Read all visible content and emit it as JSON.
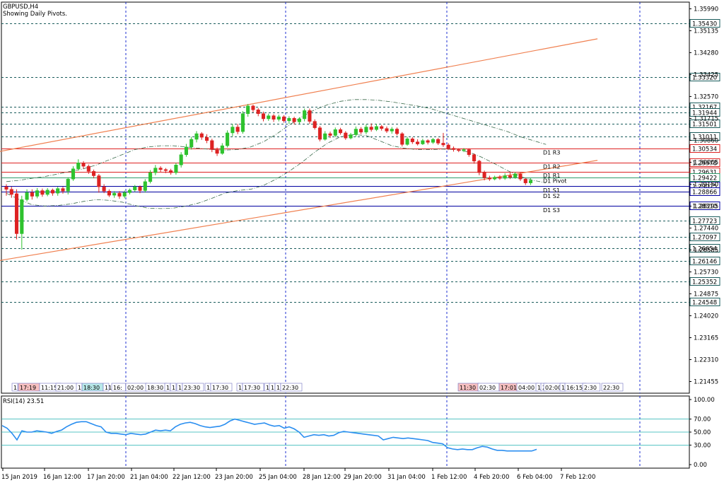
{
  "title": "GBPUSD,H4",
  "subtitle": "Showing Daily Pivots.",
  "colors": {
    "bull": "#2ec22e",
    "bear": "#dd2222",
    "channel": "#f08050",
    "pivot_resistance": "#dd2222",
    "pivot_support": "#0000a0",
    "pivot_main": "#2e9b6b",
    "level_line": "#1a5c5c",
    "grid": "#1c2fd0",
    "envelope": "#3a6a4a",
    "rsi_line": "#2a8ef0",
    "rsi_level": "#20b0b0"
  },
  "chart_data": [
    {
      "type": "candlestick",
      "symbol": "GBPUSD",
      "timeframe": "H4",
      "ylim": [
        1.21,
        1.3625
      ],
      "y_ticks": [
        "1.35990",
        "1.35135",
        "1.34280",
        "1.33425",
        "1.32570",
        "1.31715",
        "1.30860",
        "1.30005",
        "1.29150",
        "1.28295",
        "1.27440",
        "1.26585",
        "1.25730",
        "1.24875",
        "1.24020",
        "1.23165",
        "1.22310",
        "1.21455"
      ],
      "x_labels": [
        "15 Jan 2019",
        "16 Jan 12:00",
        "17 Jan 20:00",
        "21 Jan 04:00",
        "22 Jan 12:00",
        "23 Jan 20:00",
        "25 Jan 04:00",
        "28 Jan 12:00",
        "29 Jan 20:00",
        "31 Jan 04:00",
        "1 Feb 12:00",
        "4 Feb 20:00",
        "6 Feb 04:00",
        "7 Feb 12:00"
      ],
      "price_levels": [
        {
          "value": "1.35430",
          "kind": "level"
        },
        {
          "value": "1.33320",
          "kind": "level"
        },
        {
          "value": "1.32167",
          "kind": "level"
        },
        {
          "value": "1.31944",
          "kind": "level"
        },
        {
          "value": "1.31501",
          "kind": "level"
        },
        {
          "value": "1.31011",
          "kind": "level"
        },
        {
          "value": "1.30534",
          "kind": "resistance"
        },
        {
          "value": "1.29978",
          "kind": "resistance"
        },
        {
          "value": "1.29631",
          "kind": "resistance"
        },
        {
          "value": "1.29422",
          "kind": "pivot"
        },
        {
          "value": "1.29075",
          "kind": "support"
        },
        {
          "value": "1.28866",
          "kind": "support"
        },
        {
          "value": "1.28310",
          "kind": "support"
        },
        {
          "value": "1.27723",
          "kind": "level"
        },
        {
          "value": "1.27097",
          "kind": "level"
        },
        {
          "value": "1.26654",
          "kind": "level"
        },
        {
          "value": "1.26146",
          "kind": "level"
        },
        {
          "value": "1.25352",
          "kind": "level"
        },
        {
          "value": "1.24548",
          "kind": "level"
        }
      ],
      "pivots": [
        {
          "label": "D1  R3",
          "value": 1.30534,
          "kind": "resistance"
        },
        {
          "label": "D1  R2",
          "value": 1.29978,
          "kind": "resistance"
        },
        {
          "label": "D1  R1",
          "value": 1.29631,
          "kind": "resistance"
        },
        {
          "label": "D1  Pivot",
          "value": 1.29422,
          "kind": "pivot"
        },
        {
          "label": "D1  S1",
          "value": 1.29075,
          "kind": "support"
        },
        {
          "label": "D1  S2",
          "value": 1.28866,
          "kind": "support"
        },
        {
          "label": "D1  S3",
          "value": 1.2831,
          "kind": "support"
        }
      ],
      "candles": [
        [
          1.2905,
          1.2895,
          1.287,
          1.2915
        ],
        [
          1.2895,
          1.2875,
          1.2862,
          1.2905
        ],
        [
          1.2878,
          1.2722,
          1.27,
          1.2895
        ],
        [
          1.2722,
          1.2855,
          1.266,
          1.287
        ],
        [
          1.2855,
          1.2882,
          1.2848,
          1.2895
        ],
        [
          1.2882,
          1.2868,
          1.2855,
          1.2895
        ],
        [
          1.2868,
          1.289,
          1.286,
          1.29
        ],
        [
          1.289,
          1.2875,
          1.2866,
          1.2898
        ],
        [
          1.2875,
          1.2892,
          1.2868,
          1.29
        ],
        [
          1.2892,
          1.288,
          1.287,
          1.2898
        ],
        [
          1.288,
          1.2898,
          1.287,
          1.2905
        ],
        [
          1.2898,
          1.2888,
          1.2878,
          1.2905
        ],
        [
          1.2888,
          1.2935,
          1.2875,
          1.2942
        ],
        [
          1.2935,
          1.2975,
          1.2928,
          1.2985
        ],
        [
          1.2975,
          1.2998,
          1.2968,
          1.3012
        ],
        [
          1.2998,
          1.2985,
          1.2975,
          1.3005
        ],
        [
          1.2985,
          1.2965,
          1.2955,
          1.2992
        ],
        [
          1.2965,
          1.2948,
          1.2938,
          1.2972
        ],
        [
          1.2948,
          1.2905,
          1.2882,
          1.2955
        ],
        [
          1.2905,
          1.2888,
          1.288,
          1.2915
        ],
        [
          1.2888,
          1.2872,
          1.2865,
          1.2895
        ],
        [
          1.2872,
          1.288,
          1.2862,
          1.2888
        ],
        [
          1.288,
          1.2868,
          1.2858,
          1.2888
        ],
        [
          1.2868,
          1.2882,
          1.286,
          1.289
        ],
        [
          1.2882,
          1.2892,
          1.2875,
          1.2898
        ],
        [
          1.2892,
          1.2905,
          1.2885,
          1.2912
        ],
        [
          1.2905,
          1.289,
          1.288,
          1.291
        ],
        [
          1.289,
          1.2925,
          1.2882,
          1.2935
        ],
        [
          1.2925,
          1.296,
          1.2918,
          1.297
        ],
        [
          1.296,
          1.2978,
          1.295,
          1.299
        ],
        [
          1.2978,
          1.2972,
          1.2962,
          1.2985
        ],
        [
          1.2972,
          1.2968,
          1.2958,
          1.2978
        ],
        [
          1.2968,
          1.296,
          1.2952,
          1.2975
        ],
        [
          1.296,
          1.299,
          1.2952,
          1.2998
        ],
        [
          1.299,
          1.303,
          1.298,
          1.304
        ],
        [
          1.303,
          1.306,
          1.3022,
          1.3072
        ],
        [
          1.306,
          1.309,
          1.305,
          1.31
        ],
        [
          1.309,
          1.3112,
          1.3078,
          1.3122
        ],
        [
          1.3112,
          1.3098,
          1.3088,
          1.3118
        ],
        [
          1.3098,
          1.3085,
          1.3075,
          1.311
        ],
        [
          1.3085,
          1.305,
          1.304,
          1.3092
        ],
        [
          1.305,
          1.3035,
          1.3025,
          1.3058
        ],
        [
          1.3035,
          1.3065,
          1.303,
          1.3075
        ],
        [
          1.3065,
          1.3115,
          1.3058,
          1.3125
        ],
        [
          1.3115,
          1.3138,
          1.3102,
          1.315
        ],
        [
          1.3138,
          1.312,
          1.311,
          1.315
        ],
        [
          1.312,
          1.319,
          1.3112,
          1.32
        ],
        [
          1.319,
          1.322,
          1.3178,
          1.3228
        ],
        [
          1.322,
          1.3205,
          1.3195,
          1.3225
        ],
        [
          1.3205,
          1.319,
          1.318,
          1.3212
        ],
        [
          1.319,
          1.317,
          1.316,
          1.3198
        ],
        [
          1.317,
          1.3182,
          1.3162,
          1.319
        ],
        [
          1.3182,
          1.3168,
          1.3158,
          1.3188
        ],
        [
          1.3168,
          1.3178,
          1.316,
          1.3186
        ],
        [
          1.3178,
          1.3162,
          1.3155,
          1.3184
        ],
        [
          1.3162,
          1.3172,
          1.315,
          1.318
        ],
        [
          1.3172,
          1.3158,
          1.3148,
          1.3178
        ],
        [
          1.3158,
          1.317,
          1.315,
          1.3176
        ],
        [
          1.317,
          1.3202,
          1.316,
          1.321
        ],
        [
          1.3202,
          1.316,
          1.315,
          1.321
        ],
        [
          1.316,
          1.3135,
          1.3128,
          1.3168
        ],
        [
          1.3135,
          1.309,
          1.3082,
          1.3142
        ],
        [
          1.309,
          1.3112,
          1.3085,
          1.3122
        ],
        [
          1.3112,
          1.3105,
          1.3095,
          1.312
        ],
        [
          1.3105,
          1.3128,
          1.3098,
          1.3136
        ],
        [
          1.3128,
          1.3115,
          1.3108,
          1.3135
        ],
        [
          1.3115,
          1.3095,
          1.3088,
          1.3122
        ],
        [
          1.3095,
          1.3108,
          1.309,
          1.3115
        ],
        [
          1.3108,
          1.313,
          1.31,
          1.314
        ],
        [
          1.313,
          1.3118,
          1.311,
          1.3138
        ],
        [
          1.3118,
          1.3138,
          1.311,
          1.3148
        ],
        [
          1.3138,
          1.3128,
          1.312,
          1.3152
        ],
        [
          1.3128,
          1.314,
          1.3122,
          1.315
        ],
        [
          1.314,
          1.3132,
          1.3124,
          1.3146
        ],
        [
          1.3132,
          1.3122,
          1.3115,
          1.314
        ],
        [
          1.3122,
          1.313,
          1.3112,
          1.3138
        ],
        [
          1.313,
          1.3112,
          1.3105,
          1.3136
        ],
        [
          1.3112,
          1.307,
          1.3062,
          1.3118
        ],
        [
          1.307,
          1.3092,
          1.3065,
          1.31
        ],
        [
          1.3092,
          1.308,
          1.3072,
          1.3098
        ],
        [
          1.308,
          1.3072,
          1.3066,
          1.309
        ],
        [
          1.3072,
          1.3085,
          1.3068,
          1.3092
        ],
        [
          1.3085,
          1.3078,
          1.307,
          1.309
        ],
        [
          1.3078,
          1.309,
          1.3072,
          1.3095
        ],
        [
          1.309,
          1.3075,
          1.3068,
          1.3095
        ],
        [
          1.3075,
          1.3068,
          1.306,
          1.3115
        ],
        [
          1.3068,
          1.3055,
          1.3048,
          1.3075
        ],
        [
          1.3055,
          1.305,
          1.3042,
          1.3062
        ],
        [
          1.305,
          1.3046,
          1.304,
          1.3055
        ],
        [
          1.3046,
          1.305,
          1.304,
          1.3056
        ],
        [
          1.305,
          1.303,
          1.3022,
          1.3055
        ],
        [
          1.303,
          1.3005,
          1.2995,
          1.3035
        ],
        [
          1.3005,
          1.296,
          1.295,
          1.301
        ],
        [
          1.296,
          1.294,
          1.293,
          1.2968
        ],
        [
          1.294,
          1.2935,
          1.2928,
          1.2948
        ],
        [
          1.2935,
          1.2942,
          1.293,
          1.2948
        ],
        [
          1.2942,
          1.2938,
          1.2932,
          1.295
        ],
        [
          1.2938,
          1.2948,
          1.2932,
          1.2958
        ],
        [
          1.2948,
          1.2942,
          1.2935,
          1.2962
        ],
        [
          1.2942,
          1.2955,
          1.2936,
          1.2962
        ],
        [
          1.2955,
          1.2935,
          1.2928,
          1.296
        ],
        [
          1.2935,
          1.292,
          1.2912,
          1.294
        ],
        [
          1.292,
          1.293,
          1.2912,
          1.2938
        ]
      ],
      "channel_lines": [
        {
          "from_index": -2,
          "from_value": 1.304,
          "to_index": 115,
          "to_value": 1.3482
        },
        {
          "from_index": -2,
          "from_value": 1.2615,
          "to_index": 115,
          "to_value": 1.3008
        }
      ],
      "envelope_upper": [
        1.2925,
        1.293,
        1.2938,
        1.2945,
        1.2955,
        1.2965,
        1.2975,
        1.299,
        1.301,
        1.303,
        1.305,
        1.306,
        1.3065,
        1.3065,
        1.306,
        1.3055,
        1.305,
        1.3048,
        1.305,
        1.306,
        1.308,
        1.311,
        1.3145,
        1.3178,
        1.3205,
        1.3225,
        1.3238,
        1.3245,
        1.3245,
        1.3242,
        1.3236,
        1.3228,
        1.322,
        1.321,
        1.3195,
        1.318,
        1.3165,
        1.315,
        1.3135,
        1.312,
        1.31,
        1.3085,
        1.307
      ],
      "envelope_lower": [
        1.288,
        1.2855,
        1.2835,
        1.283,
        1.2832,
        1.2838,
        1.2848,
        1.2855,
        1.2852,
        1.2845,
        1.2832,
        1.2822,
        1.282,
        1.2822,
        1.283,
        1.2842,
        1.286,
        1.288,
        1.289,
        1.2895,
        1.291,
        1.2935,
        1.2965,
        1.3,
        1.304,
        1.3075,
        1.31,
        1.3108,
        1.3105,
        1.3085,
        1.3065,
        1.3055,
        1.305,
        1.305,
        1.3052,
        1.305,
        1.304,
        1.302,
        1.2995,
        1.2968,
        1.2945,
        1.293,
        1.292
      ]
    },
    {
      "type": "line",
      "name": "RSI(14) 23.51",
      "ylim": [
        0,
        100
      ],
      "y_ticks": [
        "100.00",
        "70.00",
        "50.00",
        "30.00",
        "0.00"
      ],
      "levels": [
        70,
        50,
        30
      ],
      "values": [
        60,
        56,
        48,
        38,
        52,
        50,
        50,
        52,
        51,
        50,
        48,
        51,
        53,
        58,
        62,
        65,
        66,
        66,
        63,
        60,
        58,
        50,
        48,
        48,
        47,
        46,
        48,
        47,
        46,
        47,
        50,
        53,
        52,
        53,
        52,
        58,
        62,
        64,
        65,
        63,
        60,
        58,
        57,
        58,
        59,
        62,
        67,
        70,
        68,
        66,
        64,
        62,
        63,
        64,
        61,
        59,
        60,
        56,
        58,
        55,
        50,
        42,
        44,
        46,
        45,
        46,
        44,
        45,
        49,
        51,
        50,
        49,
        48,
        47,
        46,
        45,
        44,
        38,
        40,
        42,
        41,
        40,
        41,
        40,
        39,
        38,
        37,
        34,
        33,
        32,
        26,
        24,
        23,
        24,
        23,
        23,
        26,
        28,
        27,
        24,
        22,
        22,
        21,
        21,
        21,
        21,
        21,
        21,
        23.51
      ]
    }
  ],
  "session_markers": [
    "1",
    "17:19",
    "11:15",
    "21:00",
    "1",
    "18:30",
    "11",
    "16:",
    "02:00",
    "18:30",
    "1",
    "1",
    "1",
    "23:30",
    "1",
    "17:30",
    "1",
    "17:30",
    "1",
    "1",
    "1",
    "22:30",
    "11:30",
    "02:30",
    "17:01",
    "04:00",
    "1",
    "2",
    "02:00",
    "1",
    "16:15",
    "2:30",
    "22:30"
  ]
}
